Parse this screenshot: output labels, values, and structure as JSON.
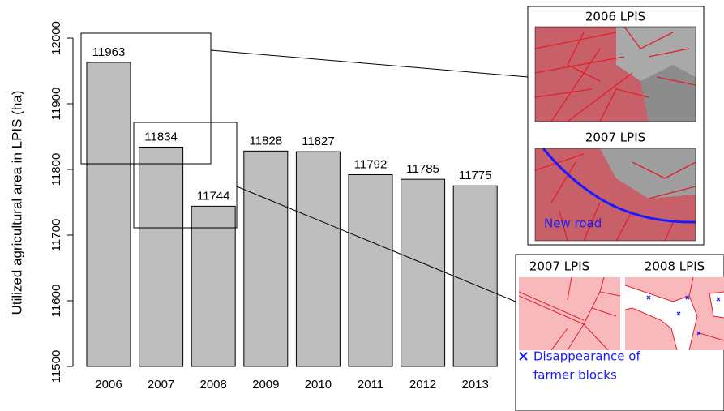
{
  "chart_data": {
    "type": "bar",
    "ylabel": "Utilized agricultural area in LPIS (ha)",
    "categories": [
      "2006",
      "2007",
      "2008",
      "2009",
      "2010",
      "2011",
      "2012",
      "2013"
    ],
    "values": [
      11963,
      11834,
      11744,
      11828,
      11827,
      11792,
      11785,
      11775
    ],
    "color": "#bebebe",
    "ylim": [
      11500,
      12000
    ],
    "yticks": [
      11500,
      11600,
      11700,
      11800,
      11900,
      12000
    ],
    "grid": false
  },
  "insets": {
    "top": {
      "upper_title": "2006 LPIS",
      "lower_title": "2007 LPIS",
      "annotation": "New road"
    },
    "bottom": {
      "left_title": "2007 LPIS",
      "right_title": "2008 LPIS",
      "legend_line1": "Disappearance of",
      "legend_line2": "farmer blocks"
    }
  }
}
